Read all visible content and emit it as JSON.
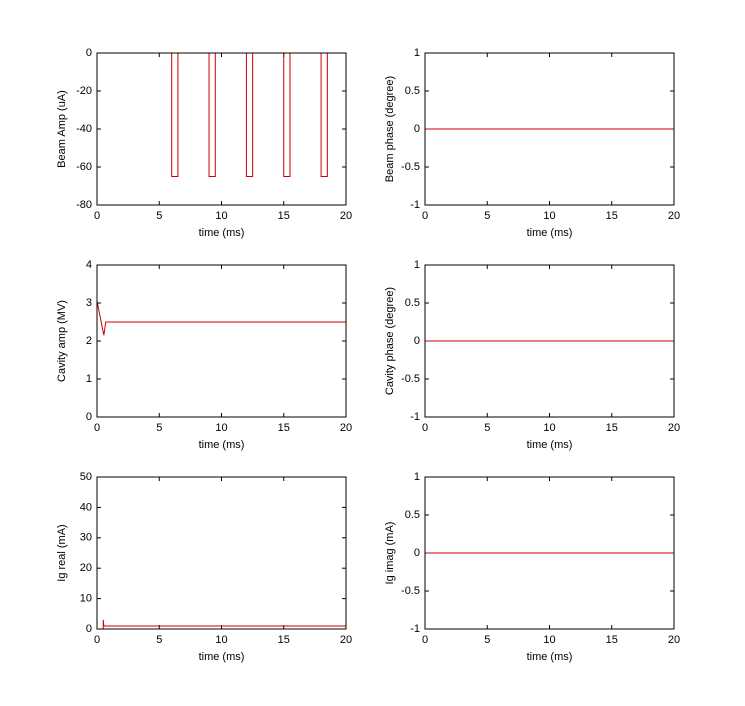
{
  "chart_data": [
    {
      "type": "line",
      "ylabel": "Beam Amp (uA)",
      "xlabel": "time (ms)",
      "color": "#cc0000",
      "x": [
        0,
        6,
        6,
        6.5,
        6.5,
        9,
        9,
        9.5,
        9.5,
        12,
        12,
        12.5,
        12.5,
        15,
        15,
        15.5,
        15.5,
        18,
        18,
        18.5,
        18.5,
        20
      ],
      "values": [
        0,
        0,
        -65,
        -65,
        0,
        0,
        -65,
        -65,
        0,
        0,
        -65,
        -65,
        0,
        0,
        -65,
        -65,
        0,
        0,
        -65,
        -65,
        0,
        0
      ],
      "xlim": [
        0,
        20
      ],
      "xticks": [
        0,
        5,
        10,
        15,
        20
      ],
      "ylim": [
        -80,
        0
      ],
      "yticks": [
        -80,
        -60,
        -40,
        -20,
        0
      ]
    },
    {
      "type": "line",
      "ylabel": "Beam phase (degree)",
      "xlabel": "time (ms)",
      "color": "#cc0000",
      "x": [
        0,
        20
      ],
      "values": [
        0,
        0
      ],
      "xlim": [
        0,
        20
      ],
      "xticks": [
        0,
        5,
        10,
        15,
        20
      ],
      "ylim": [
        -1,
        1
      ],
      "yticks": [
        -1,
        -0.5,
        0,
        0.5,
        1
      ]
    },
    {
      "type": "line",
      "ylabel": "Cavity amp (MV)",
      "xlabel": "time (ms)",
      "color": "#cc0000",
      "x": [
        0,
        0.55,
        0.7,
        20
      ],
      "values": [
        3.05,
        2.15,
        2.5,
        2.5
      ],
      "xlim": [
        0,
        20
      ],
      "xticks": [
        0,
        5,
        10,
        15,
        20
      ],
      "ylim": [
        0,
        4
      ],
      "yticks": [
        0,
        1,
        2,
        3,
        4
      ]
    },
    {
      "type": "line",
      "ylabel": "Cavity phase (degree)",
      "xlabel": "time (ms)",
      "color": "#cc0000",
      "x": [
        0,
        20
      ],
      "values": [
        0,
        0
      ],
      "xlim": [
        0,
        20
      ],
      "xticks": [
        0,
        5,
        10,
        15,
        20
      ],
      "ylim": [
        -1,
        1
      ],
      "yticks": [
        -1,
        -0.5,
        0,
        0.5,
        1
      ]
    },
    {
      "type": "line",
      "ylabel": "Ig real (mA)",
      "xlabel": "time (ms)",
      "color": "#cc0000",
      "x": [
        0.5,
        0.5,
        0.55,
        20
      ],
      "values": [
        0,
        3,
        1,
        1
      ],
      "xlim": [
        0,
        20
      ],
      "xticks": [
        0,
        5,
        10,
        15,
        20
      ],
      "ylim": [
        0,
        50
      ],
      "yticks": [
        0,
        10,
        20,
        30,
        40,
        50
      ]
    },
    {
      "type": "line",
      "ylabel": "Ig imag (mA)",
      "xlabel": "time (ms)",
      "color": "#cc0000",
      "x": [
        0,
        20
      ],
      "values": [
        0,
        0
      ],
      "xlim": [
        0,
        20
      ],
      "xticks": [
        0,
        5,
        10,
        15,
        20
      ],
      "ylim": [
        -1,
        1
      ],
      "yticks": [
        -1,
        -0.5,
        0,
        0.5,
        1
      ]
    }
  ]
}
